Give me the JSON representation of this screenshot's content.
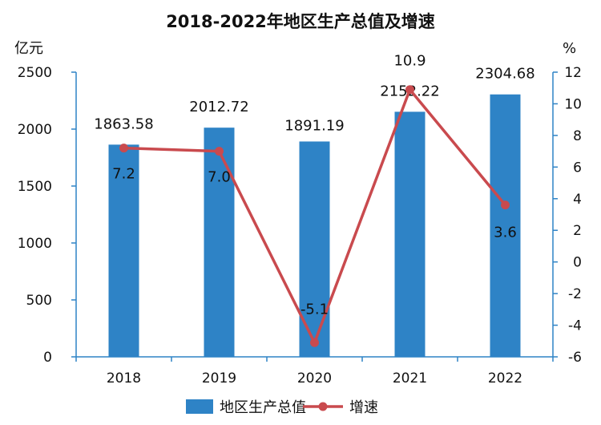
{
  "chart_data": {
    "type": "bar+line",
    "title": "2018-2022年地区生产总值及增速",
    "categories": [
      "2018",
      "2019",
      "2020",
      "2021",
      "2022"
    ],
    "y_left": {
      "label": "亿元",
      "range": [
        0,
        2500
      ],
      "ticks": [
        0,
        500,
        1000,
        1500,
        2000,
        2500
      ]
    },
    "y_right": {
      "label": "%",
      "range": [
        -6,
        12
      ],
      "ticks": [
        -6,
        -4,
        -2,
        0,
        2,
        4,
        6,
        8,
        10,
        12
      ]
    },
    "series": [
      {
        "name": "地区生产总值",
        "kind": "bar",
        "axis": "left",
        "values": [
          1863.58,
          2012.72,
          1891.19,
          2152.22,
          2304.68
        ],
        "labels": [
          "1863.58",
          "2012.72",
          "1891.19",
          "2152.22",
          "2304.68"
        ]
      },
      {
        "name": "增速",
        "kind": "line",
        "axis": "right",
        "values": [
          7.2,
          7.0,
          -5.1,
          10.9,
          3.6
        ],
        "labels": [
          "7.2",
          "7.0",
          "-5.1",
          "10.9",
          "3.6"
        ]
      }
    ],
    "grid": false,
    "legend": "bottom",
    "colors": {
      "bar": "#2e83c6",
      "line": "#c94a4e",
      "marker": "#c94a4e",
      "axis": "#2e83c6"
    }
  }
}
